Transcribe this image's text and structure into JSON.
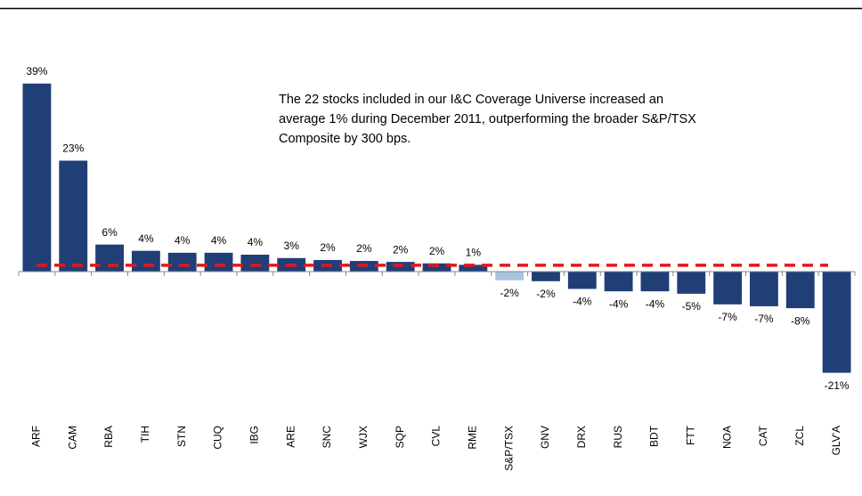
{
  "chart_data": {
    "type": "bar",
    "annotation": [
      "The 22 stocks included in our I&C Coverage Universe increased an",
      "average 1% during December 2011, outperforming the broader S&P/TSX",
      "Composite by 300 bps."
    ],
    "categories": [
      "ARF",
      "CAM",
      "RBA",
      "TIH",
      "STN",
      "CUQ",
      "IBG",
      "ARE",
      "SNC",
      "WJX",
      "SQP",
      "CVL",
      "RME",
      "S&P/TSX",
      "GNV",
      "DRX",
      "RUS",
      "BDT",
      "FTT",
      "NOA",
      "CAT",
      "ZCL",
      "GLV'A"
    ],
    "values": [
      39,
      23,
      5.6,
      4.3,
      3.9,
      3.9,
      3.5,
      2.8,
      2.4,
      2.2,
      2.0,
      1.7,
      1.4,
      -1.8,
      -2.0,
      -3.6,
      -4.1,
      -4.1,
      -4.6,
      -6.8,
      -7.2,
      -7.6,
      -21
    ],
    "value_labels": [
      "39%",
      "23%",
      "6%",
      "4%",
      "4%",
      "4%",
      "4%",
      "3%",
      "2%",
      "2%",
      "2%",
      "2%",
      "1%",
      "-2%",
      "-2%",
      "-4%",
      "-4%",
      "-4%",
      "-5%",
      "-7%",
      "-7%",
      "-8%",
      "-21%"
    ],
    "colors": [
      "#1f3f76",
      "#1f3f76",
      "#1f3f76",
      "#1f3f76",
      "#1f3f76",
      "#1f3f76",
      "#1f3f76",
      "#1f3f76",
      "#1f3f76",
      "#1f3f76",
      "#1f3f76",
      "#1f3f76",
      "#1f3f76",
      "#a9c3e3",
      "#1f3f76",
      "#1f3f76",
      "#1f3f76",
      "#1f3f76",
      "#1f3f76",
      "#1f3f76",
      "#1f3f76",
      "#1f3f76",
      "#1f3f76"
    ],
    "reference_line": {
      "value": 1.3,
      "color": "#e8141c",
      "dashed": true
    },
    "ylim": [
      -25.5,
      41
    ]
  }
}
